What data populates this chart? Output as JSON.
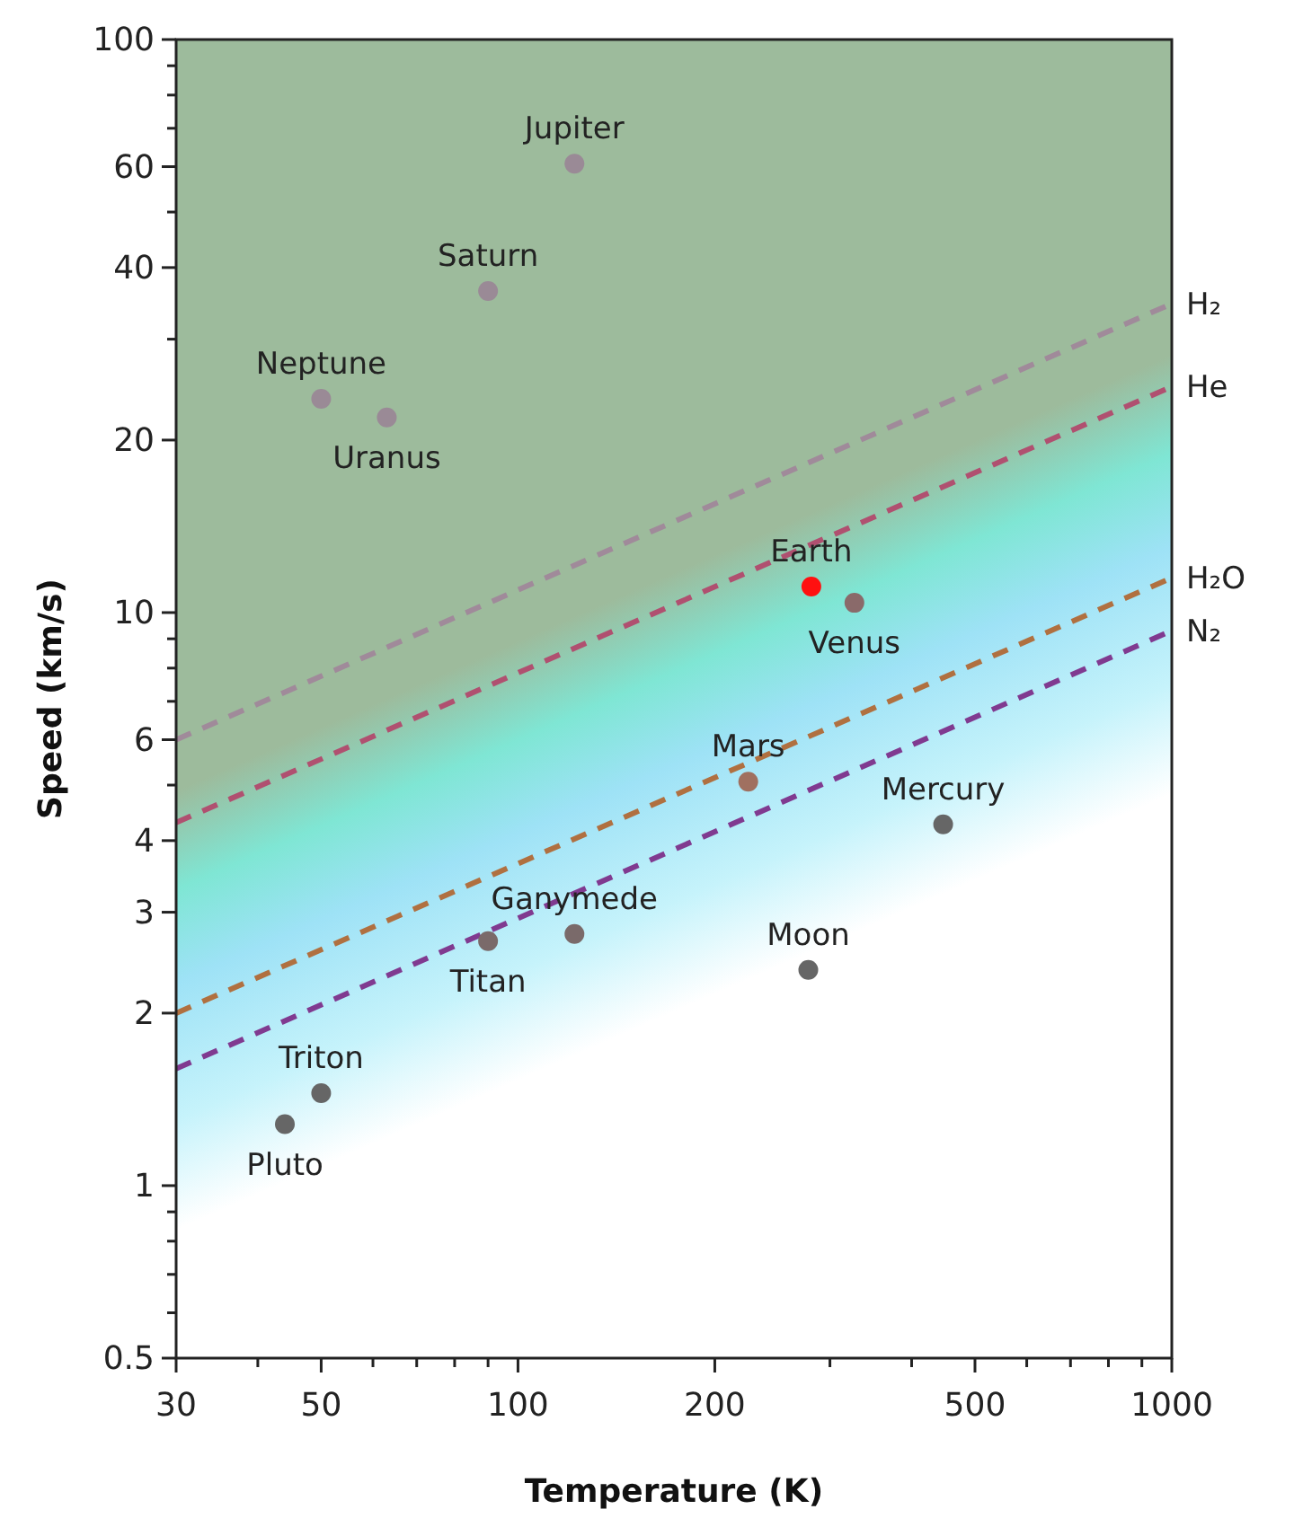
{
  "chart_data": {
    "type": "scatter",
    "xlabel": "Temperature (K)",
    "ylabel": "Speed (km/s)",
    "log": "xy",
    "grid": false,
    "xlim": [
      30,
      1000
    ],
    "ylim": [
      0.5,
      100
    ],
    "xticks": [
      30,
      {
        "value": 40,
        "label": null
      },
      50,
      {
        "value": 60,
        "label": null
      },
      {
        "value": 70,
        "label": null
      },
      {
        "value": 80,
        "label": null
      },
      {
        "value": 90,
        "label": null
      },
      100,
      200,
      {
        "value": 300,
        "label": null
      },
      {
        "value": 400,
        "label": null
      },
      500,
      {
        "value": 600,
        "label": null
      },
      {
        "value": 700,
        "label": null
      },
      {
        "value": 800,
        "label": null
      },
      {
        "value": 900,
        "label": null
      },
      1000
    ],
    "yticks": [
      0.5,
      {
        "value": 0.6,
        "label": null
      },
      {
        "value": 0.7,
        "label": null
      },
      {
        "value": 0.8,
        "label": null
      },
      {
        "value": 0.9,
        "label": null
      },
      1,
      2,
      3,
      4,
      {
        "value": 5,
        "label": null
      },
      6,
      {
        "value": 7,
        "label": null
      },
      {
        "value": 8,
        "label": null
      },
      {
        "value": 9,
        "label": null
      },
      10,
      20,
      {
        "value": 30,
        "label": null
      },
      40,
      {
        "value": 50,
        "label": null
      },
      60,
      {
        "value": 70,
        "label": null
      },
      {
        "value": 80,
        "label": null
      },
      {
        "value": 90,
        "label": null
      },
      100
    ],
    "series": [
      {
        "marker": "circle",
        "x": [
          122,
          90,
          50,
          63,
          281,
          327,
          225,
          447,
          122,
          90,
          278,
          50,
          44
        ],
        "values": [
          60.7,
          36.4,
          23.6,
          21.9,
          11.1,
          10.4,
          5.07,
          4.27,
          2.75,
          2.67,
          2.38,
          1.45,
          1.28
        ],
        "colors": [
          "#9a8a96",
          "#9a8a96",
          "#9a8a96",
          "#9a8a96",
          "#ff1010",
          "#8a6a6a",
          "#a07060",
          "#666666",
          "#7a6a6a",
          "#7a6a6a",
          "#666666",
          "#666666",
          "#666666"
        ],
        "value_labels": [
          "Jupiter",
          "Saturn",
          "Neptune",
          "Uranus",
          "Earth",
          "Venus",
          "Mars",
          "Mercury",
          "Ganymede",
          "Titan",
          "Moon",
          "Triton",
          "Pluto"
        ]
      },
      {
        "type": "line",
        "name": "H₂",
        "color": "#a08a9a",
        "line_style": "dashed",
        "marker": "none",
        "x": [
          30,
          1000
        ],
        "values": [
          6,
          34.6
        ]
      },
      {
        "type": "line",
        "name": "He",
        "color": "#b05070",
        "line_style": "dashed",
        "marker": "none",
        "x": [
          30,
          1000
        ],
        "values": [
          4.3,
          24.8
        ]
      },
      {
        "type": "line",
        "name": "H₂O",
        "color": "#b07040",
        "line_style": "dashed",
        "marker": "none",
        "x": [
          30,
          1000
        ],
        "values": [
          2,
          11.5
        ]
      },
      {
        "type": "line",
        "name": "N₂",
        "color": "#803a90",
        "line_style": "dashed",
        "marker": "none",
        "x": [
          30,
          1000
        ],
        "values": [
          1.6,
          9.3
        ]
      }
    ]
  }
}
